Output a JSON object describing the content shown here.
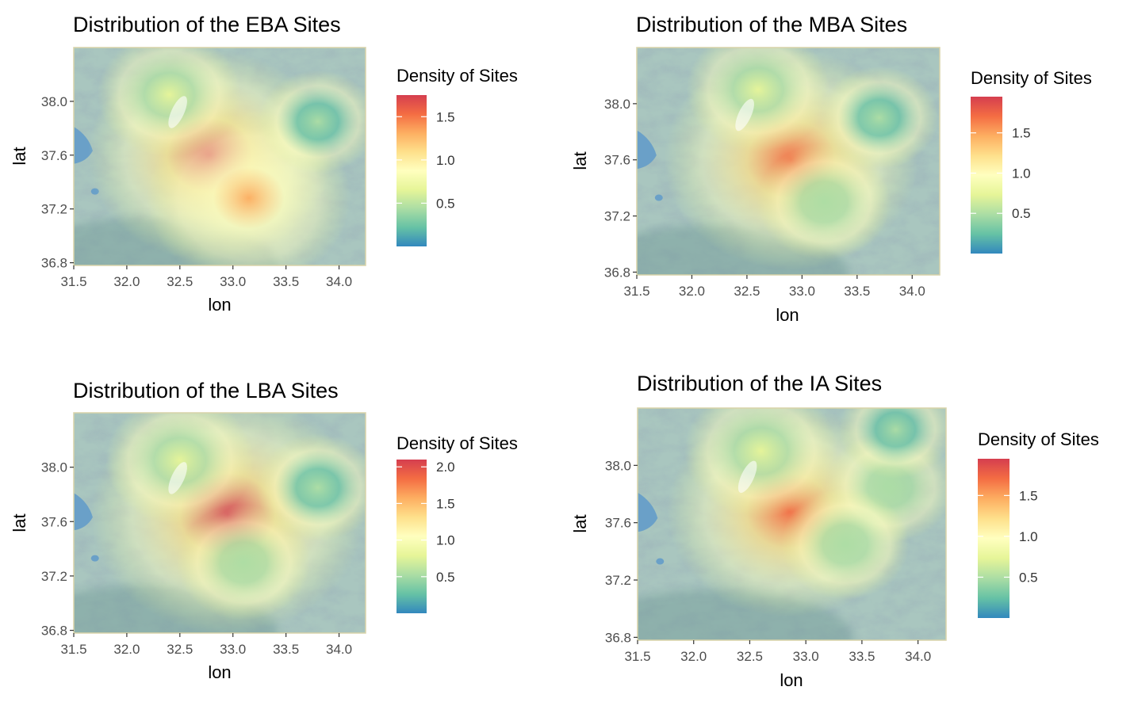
{
  "chart_data": [
    {
      "type": "heatmap",
      "title": "Distribution of the EBA Sites",
      "xlabel": "lon",
      "ylabel": "lat",
      "x_ticks": [
        "31.5",
        "32.0",
        "32.5",
        "33.0",
        "33.5",
        "34.0"
      ],
      "y_ticks": [
        "38.0",
        "37.6",
        "37.2",
        "36.8"
      ],
      "xlim": [
        31.5,
        34.25
      ],
      "ylim": [
        36.78,
        38.4
      ],
      "legend_title": "Density of Sites",
      "legend_ticks": [
        "1.5",
        "1.0",
        "0.5"
      ],
      "legend_max": 1.75,
      "hotspots": [
        {
          "lon": 32.78,
          "lat": 37.6,
          "density": 1.7
        },
        {
          "lon": 33.15,
          "lat": 37.28,
          "density": 1.3
        },
        {
          "lon": 32.4,
          "lat": 38.05,
          "density": 0.7
        },
        {
          "lon": 33.8,
          "lat": 37.85,
          "density": 0.45
        }
      ],
      "colors": [
        "#3288bd",
        "#66c2a5",
        "#abdda4",
        "#e6f598",
        "#ffffbf",
        "#fee08b",
        "#fdae61",
        "#f46d43",
        "#d53e4f"
      ]
    },
    {
      "type": "heatmap",
      "title": "Distribution of the MBA Sites",
      "xlabel": "lon",
      "ylabel": "lat",
      "x_ticks": [
        "31.5",
        "32.0",
        "32.5",
        "33.0",
        "33.5",
        "34.0"
      ],
      "y_ticks": [
        "38.0",
        "37.6",
        "37.2",
        "36.8"
      ],
      "xlim": [
        31.5,
        34.25
      ],
      "ylim": [
        36.78,
        38.4
      ],
      "legend_title": "Density of Sites",
      "legend_ticks": [
        "1.5",
        "1.0",
        "0.5"
      ],
      "legend_max": 1.95,
      "hotspots": [
        {
          "lon": 32.9,
          "lat": 37.6,
          "density": 1.8
        },
        {
          "lon": 32.6,
          "lat": 38.1,
          "density": 0.7
        },
        {
          "lon": 33.7,
          "lat": 37.9,
          "density": 0.45
        },
        {
          "lon": 33.2,
          "lat": 37.3,
          "density": 0.6
        }
      ],
      "colors": [
        "#3288bd",
        "#66c2a5",
        "#abdda4",
        "#e6f598",
        "#ffffbf",
        "#fee08b",
        "#fdae61",
        "#f46d43",
        "#d53e4f"
      ]
    },
    {
      "type": "heatmap",
      "title": "Distribution of the LBA Sites",
      "xlabel": "lon",
      "ylabel": "lat",
      "x_ticks": [
        "31.5",
        "32.0",
        "32.5",
        "33.0",
        "33.5",
        "34.0"
      ],
      "y_ticks": [
        "38.0",
        "37.6",
        "37.2",
        "36.8"
      ],
      "xlim": [
        31.5,
        34.25
      ],
      "ylim": [
        36.78,
        38.4
      ],
      "legend_title": "Density of Sites",
      "legend_ticks": [
        "2.0",
        "1.5",
        "1.0",
        "0.5"
      ],
      "legend_max": 2.1,
      "hotspots": [
        {
          "lon": 32.95,
          "lat": 37.65,
          "density": 2.0
        },
        {
          "lon": 32.5,
          "lat": 38.05,
          "density": 0.75
        },
        {
          "lon": 33.8,
          "lat": 37.85,
          "density": 0.5
        },
        {
          "lon": 33.1,
          "lat": 37.3,
          "density": 0.6
        }
      ],
      "colors": [
        "#3288bd",
        "#66c2a5",
        "#abdda4",
        "#e6f598",
        "#ffffbf",
        "#fee08b",
        "#fdae61",
        "#f46d43",
        "#d53e4f"
      ]
    },
    {
      "type": "heatmap",
      "title": "Distribution of the IA Sites",
      "xlabel": "lon",
      "ylabel": "lat",
      "x_ticks": [
        "31.5",
        "32.0",
        "32.5",
        "33.0",
        "33.5",
        "34.0"
      ],
      "y_ticks": [
        "38.0",
        "37.6",
        "37.2",
        "36.8"
      ],
      "xlim": [
        31.5,
        34.25
      ],
      "ylim": [
        36.78,
        38.4
      ],
      "legend_title": "Density of Sites",
      "legend_ticks": [
        "1.5",
        "1.0",
        "0.5"
      ],
      "legend_max": 1.95,
      "hotspots": [
        {
          "lon": 32.85,
          "lat": 37.68,
          "density": 1.7
        },
        {
          "lon": 32.6,
          "lat": 38.1,
          "density": 0.8
        },
        {
          "lon": 33.75,
          "lat": 37.85,
          "density": 0.55
        },
        {
          "lon": 33.35,
          "lat": 37.45,
          "density": 0.55
        },
        {
          "lon": 33.8,
          "lat": 38.25,
          "density": 0.4
        }
      ],
      "colors": [
        "#3288bd",
        "#66c2a5",
        "#abdda4",
        "#e6f598",
        "#ffffbf",
        "#fee08b",
        "#fdae61",
        "#f46d43",
        "#d53e4f"
      ]
    }
  ]
}
